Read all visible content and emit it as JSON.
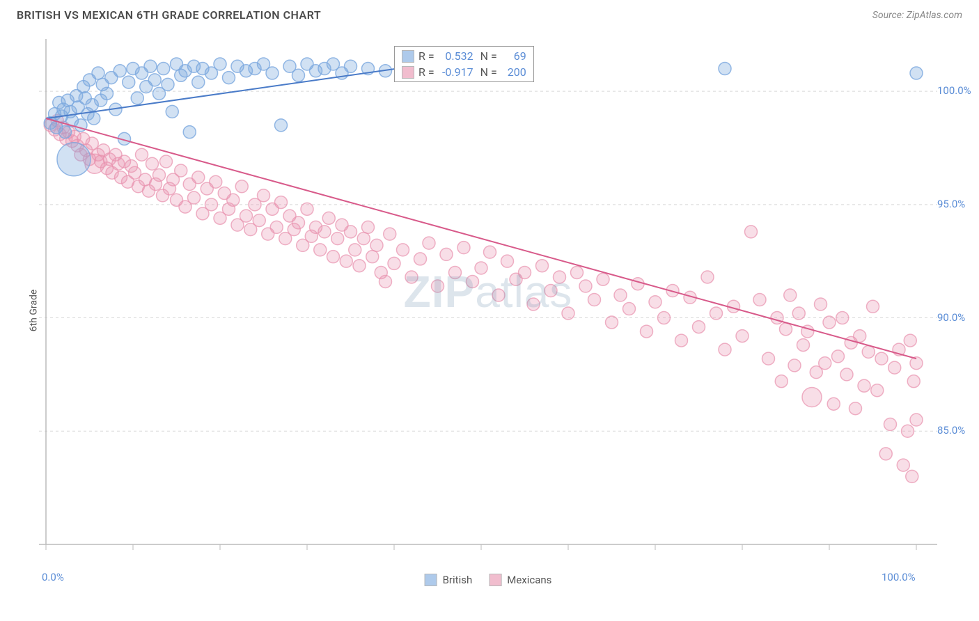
{
  "header": {
    "title": "BRITISH VS MEXICAN 6TH GRADE CORRELATION CHART",
    "source": "Source: ZipAtlas.com"
  },
  "axes": {
    "y_label": "6th Grade",
    "x_min": 0,
    "x_max": 100,
    "y_min": 80,
    "y_max": 102,
    "x_ticks": [
      0,
      100
    ],
    "x_tick_labels": [
      "0.0%",
      "100.0%"
    ],
    "x_minor_ticks": [
      10,
      20,
      30,
      40,
      50,
      60,
      70,
      80,
      90
    ],
    "y_ticks": [
      85,
      90,
      95,
      100
    ],
    "y_tick_labels": [
      "85.0%",
      "90.0%",
      "95.0%",
      "100.0%"
    ],
    "grid_color": "#d8d8d8",
    "axis_color": "#bbbbbb",
    "tick_label_color": "#5b8dd6",
    "tick_fontsize": 15,
    "axis_label_fontsize": 14,
    "background_color": "#ffffff"
  },
  "watermark": {
    "text_bold": "ZIP",
    "text_light": "atlas",
    "color": "rgba(120,150,180,0.25)",
    "fontsize": 64
  },
  "series": {
    "british": {
      "name": "British",
      "color": "#7aa8de",
      "fill_opacity": 0.35,
      "stroke_opacity": 0.8,
      "marker_radius": 9,
      "line_color": "#4a7bc8",
      "line_width": 2,
      "R": "0.532",
      "N": "69",
      "trend": {
        "x1": 0,
        "y1": 98.8,
        "x2": 44,
        "y2": 101.2
      },
      "points": [
        [
          0.5,
          98.6
        ],
        [
          1,
          99.0
        ],
        [
          1.2,
          98.4
        ],
        [
          1.5,
          99.5
        ],
        [
          1.8,
          98.9
        ],
        [
          2,
          99.2
        ],
        [
          2.2,
          98.2
        ],
        [
          2.5,
          99.6
        ],
        [
          2.8,
          99.1
        ],
        [
          3,
          98.7
        ],
        [
          3.2,
          97.0,
          24
        ],
        [
          3.5,
          99.8
        ],
        [
          3.7,
          99.3
        ],
        [
          4,
          98.5
        ],
        [
          4.3,
          100.2
        ],
        [
          4.5,
          99.7
        ],
        [
          4.8,
          99.0
        ],
        [
          5,
          100.5
        ],
        [
          5.3,
          99.4
        ],
        [
          5.5,
          98.8
        ],
        [
          6,
          100.8
        ],
        [
          6.3,
          99.6
        ],
        [
          6.5,
          100.3
        ],
        [
          7,
          99.9
        ],
        [
          7.5,
          100.6
        ],
        [
          8,
          99.2
        ],
        [
          8.5,
          100.9
        ],
        [
          9,
          97.9
        ],
        [
          9.5,
          100.4
        ],
        [
          10,
          101.0
        ],
        [
          10.5,
          99.7
        ],
        [
          11,
          100.8
        ],
        [
          11.5,
          100.2
        ],
        [
          12,
          101.1
        ],
        [
          12.5,
          100.5
        ],
        [
          13,
          99.9
        ],
        [
          13.5,
          101.0
        ],
        [
          14,
          100.3
        ],
        [
          14.5,
          99.1
        ],
        [
          15,
          101.2
        ],
        [
          15.5,
          100.7
        ],
        [
          16,
          100.9
        ],
        [
          16.5,
          98.2
        ],
        [
          17,
          101.1
        ],
        [
          17.5,
          100.4
        ],
        [
          18,
          101.0
        ],
        [
          19,
          100.8
        ],
        [
          20,
          101.2
        ],
        [
          21,
          100.6
        ],
        [
          22,
          101.1
        ],
        [
          23,
          100.9
        ],
        [
          24,
          101.0
        ],
        [
          25,
          101.2
        ],
        [
          26,
          100.8
        ],
        [
          27,
          98.5
        ],
        [
          28,
          101.1
        ],
        [
          29,
          100.7
        ],
        [
          30,
          101.2
        ],
        [
          31,
          100.9
        ],
        [
          32,
          101.0
        ],
        [
          33,
          101.2
        ],
        [
          34,
          100.8
        ],
        [
          35,
          101.1
        ],
        [
          37,
          101.0
        ],
        [
          39,
          100.9
        ],
        [
          41,
          101.2
        ],
        [
          43,
          101.0
        ],
        [
          78,
          101.0
        ],
        [
          100,
          100.8
        ]
      ]
    },
    "mexicans": {
      "name": "Mexicans",
      "color": "#e892ae",
      "fill_opacity": 0.3,
      "stroke_opacity": 0.7,
      "marker_radius": 9,
      "line_color": "#d85a8a",
      "line_width": 2,
      "R": "-0.917",
      "N": "200",
      "trend": {
        "x1": 0,
        "y1": 98.8,
        "x2": 100,
        "y2": 88.2
      },
      "points": [
        [
          0.5,
          98.5
        ],
        [
          1,
          98.3
        ],
        [
          1.3,
          98.7
        ],
        [
          1.6,
          98.1
        ],
        [
          2,
          98.4
        ],
        [
          2.3,
          97.9
        ],
        [
          2.6,
          98.2
        ],
        [
          3,
          97.8
        ],
        [
          3.3,
          98.0
        ],
        [
          3.6,
          97.6
        ],
        [
          4,
          97.2
        ],
        [
          4.3,
          97.9
        ],
        [
          4.6,
          97.4
        ],
        [
          5,
          97.0
        ],
        [
          5.3,
          97.7
        ],
        [
          5.6,
          96.8,
          14
        ],
        [
          6,
          97.2
        ],
        [
          6.3,
          96.9
        ],
        [
          6.6,
          97.4
        ],
        [
          7,
          96.6
        ],
        [
          7.3,
          97.0
        ],
        [
          7.6,
          96.4
        ],
        [
          8,
          97.2
        ],
        [
          8.3,
          96.8
        ],
        [
          8.6,
          96.2
        ],
        [
          9,
          96.9
        ],
        [
          9.4,
          96.0
        ],
        [
          9.8,
          96.7
        ],
        [
          10.2,
          96.4
        ],
        [
          10.6,
          95.8
        ],
        [
          11,
          97.2
        ],
        [
          11.4,
          96.1
        ],
        [
          11.8,
          95.6
        ],
        [
          12.2,
          96.8
        ],
        [
          12.6,
          95.9
        ],
        [
          13,
          96.3
        ],
        [
          13.4,
          95.4
        ],
        [
          13.8,
          96.9
        ],
        [
          14.2,
          95.7
        ],
        [
          14.6,
          96.1
        ],
        [
          15,
          95.2
        ],
        [
          15.5,
          96.5
        ],
        [
          16,
          94.9
        ],
        [
          16.5,
          95.9
        ],
        [
          17,
          95.3
        ],
        [
          17.5,
          96.2
        ],
        [
          18,
          94.6
        ],
        [
          18.5,
          95.7
        ],
        [
          19,
          95.0
        ],
        [
          19.5,
          96.0
        ],
        [
          20,
          94.4
        ],
        [
          20.5,
          95.5
        ],
        [
          21,
          94.8
        ],
        [
          21.5,
          95.2
        ],
        [
          22,
          94.1
        ],
        [
          22.5,
          95.8
        ],
        [
          23,
          94.5
        ],
        [
          23.5,
          93.9
        ],
        [
          24,
          95.0
        ],
        [
          24.5,
          94.3
        ],
        [
          25,
          95.4
        ],
        [
          25.5,
          93.7
        ],
        [
          26,
          94.8
        ],
        [
          26.5,
          94.0
        ],
        [
          27,
          95.1
        ],
        [
          27.5,
          93.5
        ],
        [
          28,
          94.5
        ],
        [
          28.5,
          93.9
        ],
        [
          29,
          94.2
        ],
        [
          29.5,
          93.2
        ],
        [
          30,
          94.8
        ],
        [
          30.5,
          93.6
        ],
        [
          31,
          94.0
        ],
        [
          31.5,
          93.0
        ],
        [
          32,
          93.8
        ],
        [
          32.5,
          94.4
        ],
        [
          33,
          92.7
        ],
        [
          33.5,
          93.5
        ],
        [
          34,
          94.1
        ],
        [
          34.5,
          92.5
        ],
        [
          35,
          93.8
        ],
        [
          35.5,
          93.0
        ],
        [
          36,
          92.3
        ],
        [
          36.5,
          93.5
        ],
        [
          37,
          94.0
        ],
        [
          37.5,
          92.7
        ],
        [
          38,
          93.2
        ],
        [
          38.5,
          92.0
        ],
        [
          39,
          91.6
        ],
        [
          39.5,
          93.7
        ],
        [
          40,
          92.4
        ],
        [
          41,
          93.0
        ],
        [
          42,
          91.8
        ],
        [
          43,
          92.6
        ],
        [
          44,
          93.3
        ],
        [
          45,
          91.4
        ],
        [
          46,
          92.8
        ],
        [
          47,
          92.0
        ],
        [
          48,
          93.1
        ],
        [
          49,
          91.6
        ],
        [
          50,
          92.2
        ],
        [
          51,
          92.9
        ],
        [
          52,
          91.0
        ],
        [
          53,
          92.5
        ],
        [
          54,
          91.7
        ],
        [
          55,
          92.0
        ],
        [
          56,
          90.6
        ],
        [
          57,
          92.3
        ],
        [
          58,
          91.2
        ],
        [
          59,
          91.8
        ],
        [
          60,
          90.2
        ],
        [
          61,
          92.0
        ],
        [
          62,
          91.4
        ],
        [
          63,
          90.8
        ],
        [
          64,
          91.7
        ],
        [
          65,
          89.8
        ],
        [
          66,
          91.0
        ],
        [
          67,
          90.4
        ],
        [
          68,
          91.5
        ],
        [
          69,
          89.4
        ],
        [
          70,
          90.7
        ],
        [
          71,
          90.0
        ],
        [
          72,
          91.2
        ],
        [
          73,
          89.0
        ],
        [
          74,
          90.9
        ],
        [
          75,
          89.6
        ],
        [
          76,
          91.8
        ],
        [
          77,
          90.2
        ],
        [
          78,
          88.6
        ],
        [
          79,
          90.5
        ],
        [
          80,
          89.2
        ],
        [
          81,
          93.8
        ],
        [
          82,
          90.8
        ],
        [
          83,
          88.2
        ],
        [
          84,
          90.0
        ],
        [
          84.5,
          87.2
        ],
        [
          85,
          89.5
        ],
        [
          85.5,
          91.0
        ],
        [
          86,
          87.9
        ],
        [
          86.5,
          90.2
        ],
        [
          87,
          88.8
        ],
        [
          87.5,
          89.4
        ],
        [
          88,
          86.5,
          14
        ],
        [
          88.5,
          87.6
        ],
        [
          89,
          90.6
        ],
        [
          89.5,
          88.0
        ],
        [
          90,
          89.8
        ],
        [
          90.5,
          86.2
        ],
        [
          91,
          88.3
        ],
        [
          91.5,
          90.0
        ],
        [
          92,
          87.5
        ],
        [
          92.5,
          88.9
        ],
        [
          93,
          86.0
        ],
        [
          93.5,
          89.2
        ],
        [
          94,
          87.0
        ],
        [
          94.5,
          88.5
        ],
        [
          95,
          90.5
        ],
        [
          95.5,
          86.8
        ],
        [
          96,
          88.2
        ],
        [
          96.5,
          84.0
        ],
        [
          97,
          85.3
        ],
        [
          97.5,
          87.8
        ],
        [
          98,
          88.6
        ],
        [
          98.5,
          83.5
        ],
        [
          99,
          85.0
        ],
        [
          99.3,
          89.0
        ],
        [
          99.5,
          83.0
        ],
        [
          99.7,
          87.2
        ],
        [
          100,
          85.5
        ],
        [
          100,
          88.0
        ]
      ]
    }
  },
  "stats_legend": {
    "r_label": "R =",
    "n_label": "N ="
  },
  "legend": {
    "items": [
      {
        "key": "british",
        "label": "British"
      },
      {
        "key": "mexicans",
        "label": "Mexicans"
      }
    ]
  }
}
